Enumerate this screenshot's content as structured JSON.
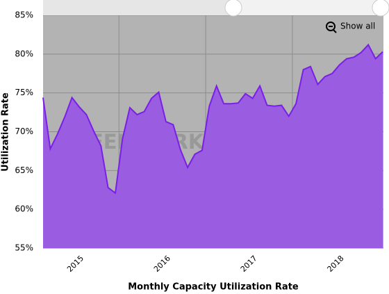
{
  "chart_data": {
    "type": "area",
    "x_label": "Monthly Capacity Utilization Rate",
    "y_label": "Utilization Rate",
    "watermark": "STEEL MARKET UPDATE",
    "button": "Show all",
    "categories": [
      null,
      null,
      null,
      null,
      "2015",
      null,
      null,
      null,
      null,
      null,
      null,
      null,
      null,
      null,
      null,
      null,
      "2016",
      null,
      null,
      null,
      null,
      null,
      null,
      null,
      null,
      null,
      null,
      null,
      "2017",
      null,
      null,
      null,
      null,
      null,
      null,
      null,
      null,
      null,
      null,
      null,
      "2018",
      null,
      null,
      null,
      null,
      null,
      null,
      null
    ],
    "series": [
      {
        "name": "Utilization Rate",
        "color": "#7a1fe6",
        "fill": "#9a5ce0",
        "values": [
          74.4,
          67.8,
          69.7,
          71.9,
          74.4,
          73.2,
          72.2,
          70.1,
          68.2,
          62.8,
          62.1,
          69.1,
          73.1,
          72.2,
          72.6,
          74.3,
          75.1,
          71.3,
          70.9,
          67.7,
          65.4,
          67.1,
          67.6,
          73.3,
          75.9,
          73.6,
          73.6,
          73.7,
          74.9,
          74.3,
          75.9,
          73.4,
          73.3,
          73.4,
          72.0,
          73.6,
          78.0,
          78.4,
          76.1,
          77.1,
          77.5,
          78.6,
          79.4,
          79.6,
          80.2,
          81.2,
          79.4,
          80.3
        ]
      }
    ],
    "ylim": [
      55,
      85
    ],
    "yticks": [
      {
        "value": 55,
        "label": "55%"
      },
      {
        "value": 60,
        "label": "60%"
      },
      {
        "value": 65,
        "label": "65%"
      },
      {
        "value": 70,
        "label": "70%"
      },
      {
        "value": 75,
        "label": "75%"
      },
      {
        "value": 80,
        "label": "80%"
      },
      {
        "value": 85,
        "label": "85%"
      }
    ],
    "grid": true
  }
}
